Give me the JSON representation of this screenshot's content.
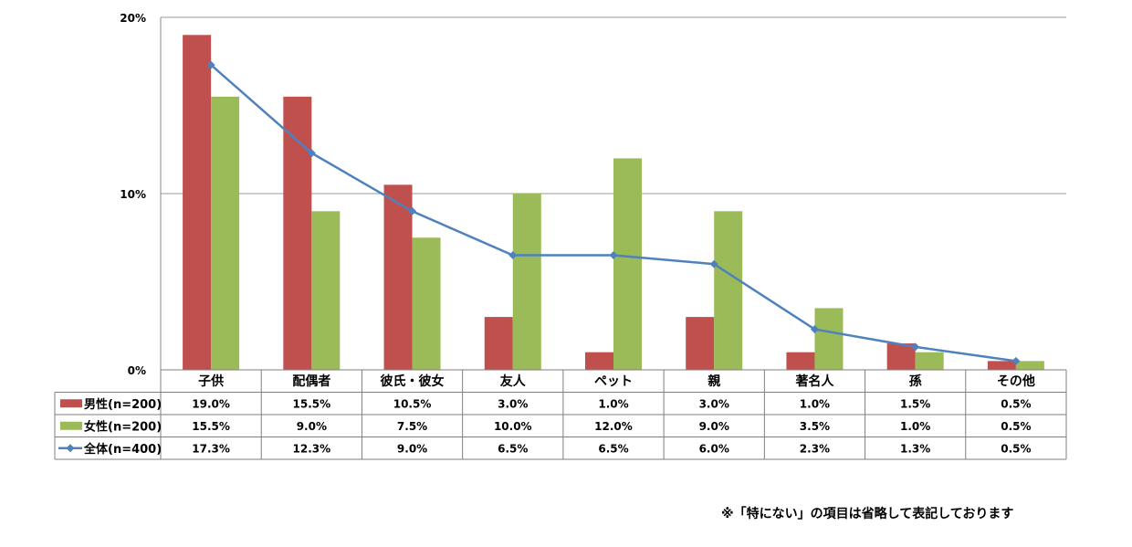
{
  "chart_data": {
    "type": "bar",
    "categories": [
      "子供",
      "配偶者",
      "彼氏・彼女",
      "友人",
      "ペット",
      "親",
      "著名人",
      "孫",
      "その他"
    ],
    "series": [
      {
        "name": "男性(n=200)",
        "kind": "bar",
        "color": "#C0504D",
        "values": [
          19.0,
          15.5,
          10.5,
          3.0,
          1.0,
          3.0,
          1.0,
          1.5,
          0.5
        ],
        "labels": [
          "19.0%",
          "15.5%",
          "10.5%",
          "3.0%",
          "1.0%",
          "3.0%",
          "1.0%",
          "1.5%",
          "0.5%"
        ]
      },
      {
        "name": "女性(n=200)",
        "kind": "bar",
        "color": "#9BBB59",
        "values": [
          15.5,
          9.0,
          7.5,
          10.0,
          12.0,
          9.0,
          3.5,
          1.0,
          0.5
        ],
        "labels": [
          "15.5%",
          "9.0%",
          "7.5%",
          "10.0%",
          "12.0%",
          "9.0%",
          "3.5%",
          "1.0%",
          "0.5%"
        ]
      },
      {
        "name": "全体(n=400)",
        "kind": "line",
        "color": "#4F81BD",
        "values": [
          17.3,
          12.3,
          9.0,
          6.5,
          6.5,
          6.0,
          2.3,
          1.3,
          0.5
        ],
        "labels": [
          "17.3%",
          "12.3%",
          "9.0%",
          "6.5%",
          "6.5%",
          "6.0%",
          "2.3%",
          "1.3%",
          "0.5%"
        ]
      }
    ],
    "y_ticks": [
      {
        "value": 0,
        "label": "0%"
      },
      {
        "value": 10,
        "label": "10%"
      },
      {
        "value": 20,
        "label": "20%"
      }
    ],
    "ylim": [
      0,
      20
    ],
    "grid": true,
    "legend": "data-table-left"
  },
  "footnote": "※「特にない」の項目は省略して表記しております"
}
